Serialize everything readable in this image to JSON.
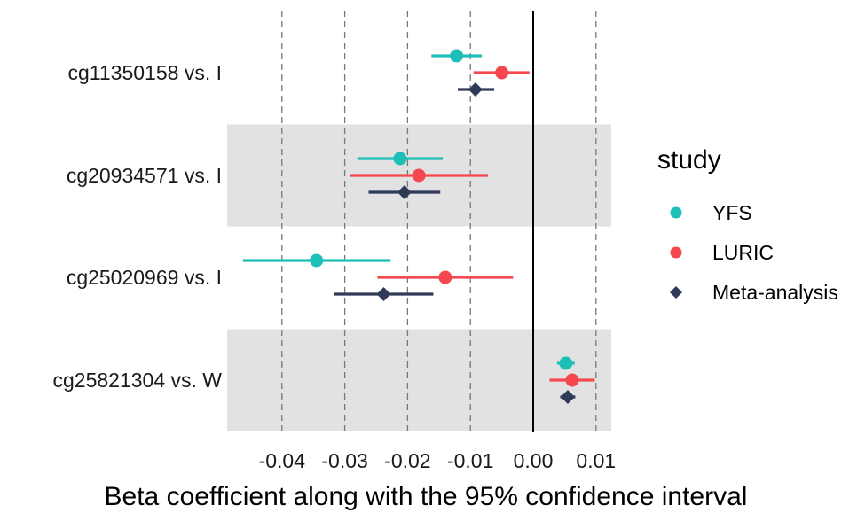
{
  "chart_data": {
    "type": "forest",
    "xlabel": "Beta coefficient along with the 95% confidence interval",
    "xlim": [
      -0.048,
      0.0125
    ],
    "xticks": [
      -0.04,
      -0.03,
      -0.02,
      -0.01,
      0.0,
      0.01
    ],
    "xtick_labels": [
      "-0.04",
      "-0.03",
      "-0.02",
      "-0.01",
      "0.00",
      "0.01"
    ],
    "reference_line": 0,
    "grid": "vertical dashed",
    "alternating_band_color": "#e2e2e2",
    "categories": [
      "cg11350158 vs. I",
      "cg20934571 vs. I",
      "cg25020969 vs. I",
      "cg25821304 vs. W"
    ],
    "legend": {
      "title": "study",
      "position": "right"
    },
    "series": [
      {
        "name": "YFS",
        "color": "#1fbfb9",
        "marker": "circle",
        "estimates": [
          -0.0122,
          -0.0212,
          -0.0345,
          0.0052
        ],
        "lower": [
          -0.0162,
          -0.028,
          -0.0462,
          0.0038
        ],
        "upper": [
          -0.0082,
          -0.0144,
          -0.0227,
          0.0066
        ]
      },
      {
        "name": "LURIC",
        "color": "#f4484e",
        "marker": "circle",
        "estimates": [
          -0.005,
          -0.0182,
          -0.014,
          0.0062
        ],
        "lower": [
          -0.0095,
          -0.0292,
          -0.0248,
          0.0026
        ],
        "upper": [
          -0.0006,
          -0.0072,
          -0.0032,
          0.0098
        ]
      },
      {
        "name": "Meta-analysis",
        "color": "#2e3a57",
        "marker": "diamond",
        "estimates": [
          -0.0092,
          -0.0205,
          -0.0238,
          0.0055
        ],
        "lower": [
          -0.012,
          -0.0262,
          -0.0317,
          0.0043
        ],
        "upper": [
          -0.0062,
          -0.0148,
          -0.0159,
          0.0067
        ]
      }
    ]
  }
}
